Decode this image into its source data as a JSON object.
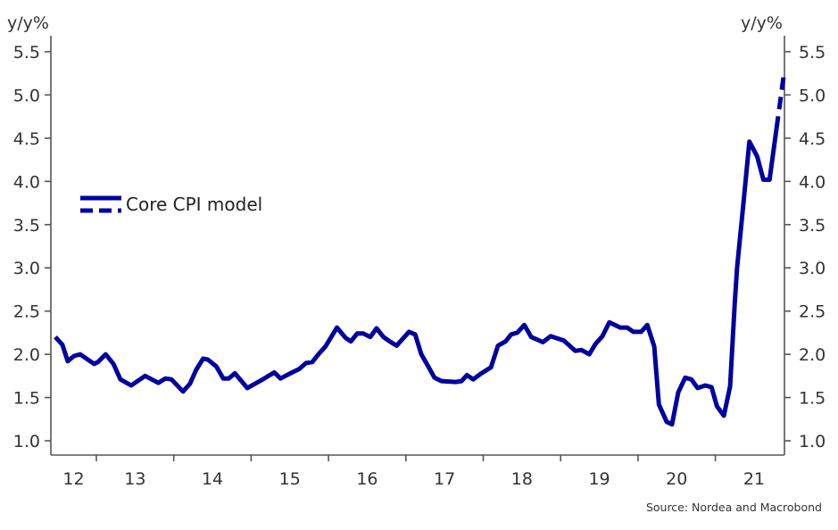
{
  "chart_data": {
    "type": "line",
    "title": "",
    "left_unit": "y/y%",
    "right_unit": "y/y%",
    "xlabel": "",
    "ylabel": "y/y%",
    "ylim": [
      1.0,
      5.5
    ],
    "xlim": [
      2012.4,
      2021.95
    ],
    "y_ticks": [
      "1.0",
      "1.5",
      "2.0",
      "2.5",
      "3.0",
      "3.5",
      "4.0",
      "4.5",
      "5.0",
      "5.5"
    ],
    "x_tick_labels": [
      "12",
      "13",
      "14",
      "15",
      "16",
      "17",
      "18",
      "19",
      "20",
      "21"
    ],
    "grid": false,
    "legend": {
      "position": "left-middle",
      "entries": [
        "Core CPI model"
      ]
    },
    "source": "Source: Nordea and Macrobond",
    "line_color": "#0000a0",
    "series": [
      {
        "name": "Core CPI model",
        "style": "solid",
        "x": [
          2012.47,
          2012.56,
          2012.63,
          2012.71,
          2012.79,
          2012.97,
          2013.02,
          2013.12,
          2013.22,
          2013.31,
          2013.45,
          2013.63,
          2013.8,
          2013.89,
          2013.97,
          2014.12,
          2014.21,
          2014.29,
          2014.38,
          2014.44,
          2014.55,
          2014.64,
          2014.71,
          2014.79,
          2014.95,
          2015.13,
          2015.3,
          2015.38,
          2015.53,
          2015.62,
          2015.71,
          2015.79,
          2015.87,
          2015.96,
          2016.11,
          2016.22,
          2016.29,
          2016.37,
          2016.45,
          2016.54,
          2016.62,
          2016.71,
          2016.79,
          2016.88,
          2017.04,
          2017.12,
          2017.2,
          2017.27,
          2017.37,
          2017.46,
          2017.64,
          2017.72,
          2017.79,
          2017.87,
          2017.96,
          2018.1,
          2018.19,
          2018.29,
          2018.36,
          2018.44,
          2018.53,
          2018.62,
          2018.77,
          2018.87,
          2019.04,
          2019.19,
          2019.27,
          2019.37,
          2019.45,
          2019.54,
          2019.63,
          2019.77,
          2019.86,
          2019.94,
          2020.04,
          2020.12,
          2020.21,
          2020.27,
          2020.37,
          2020.44,
          2020.52,
          2020.61,
          2020.69,
          2020.77,
          2020.87,
          2020.95,
          2021.02,
          2021.11,
          2021.19,
          2021.25,
          2021.28,
          2021.36,
          2021.44,
          2021.54,
          2021.62,
          2021.7,
          2021.79
        ],
        "y": [
          2.2,
          2.11,
          1.92,
          1.98,
          2.0,
          1.89,
          1.91,
          2.0,
          1.89,
          1.71,
          1.64,
          1.75,
          1.67,
          1.72,
          1.71,
          1.57,
          1.66,
          1.82,
          1.95,
          1.94,
          1.86,
          1.72,
          1.72,
          1.78,
          1.61,
          1.7,
          1.79,
          1.72,
          1.79,
          1.83,
          1.9,
          1.91,
          2.0,
          2.09,
          2.31,
          2.19,
          2.15,
          2.24,
          2.24,
          2.2,
          2.3,
          2.2,
          2.15,
          2.1,
          2.26,
          2.23,
          2.0,
          1.89,
          1.73,
          1.69,
          1.68,
          1.69,
          1.76,
          1.71,
          1.77,
          1.85,
          2.1,
          2.15,
          2.23,
          2.25,
          2.34,
          2.2,
          2.14,
          2.21,
          2.16,
          2.04,
          2.05,
          2.0,
          2.12,
          2.21,
          2.37,
          2.31,
          2.31,
          2.26,
          2.26,
          2.34,
          2.09,
          1.42,
          1.22,
          1.19,
          1.56,
          1.73,
          1.71,
          1.61,
          1.64,
          1.62,
          1.4,
          1.29,
          1.63,
          2.59,
          3.0,
          3.72,
          4.46,
          4.29,
          4.02,
          4.02,
          4.61
        ]
      },
      {
        "name": "Core CPI model (forecast)",
        "style": "dashed",
        "x": [
          2021.79,
          2021.89
        ],
        "y": [
          4.61,
          5.27
        ]
      }
    ]
  }
}
